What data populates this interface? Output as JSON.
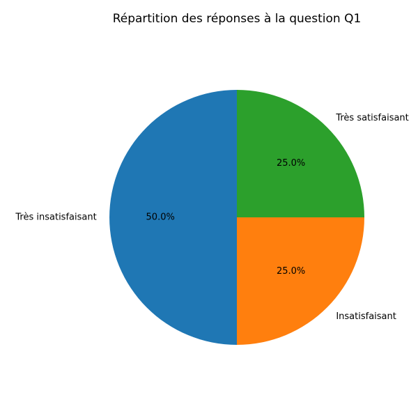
{
  "chart_data": {
    "type": "pie",
    "title": "Répartition des réponses à la question Q1",
    "categories": [
      "Très insatisfaisant",
      "Insatisfaisant",
      "Très satisfaisant"
    ],
    "values": [
      50.0,
      25.0,
      25.0
    ],
    "percent_labels": [
      "50.0%",
      "25.0%",
      "25.0%"
    ],
    "colors": [
      "#1f77b4",
      "#ff7f0e",
      "#2ca02c"
    ],
    "start_angle_deg": 90,
    "direction": "counterclockwise",
    "legend": "none"
  }
}
